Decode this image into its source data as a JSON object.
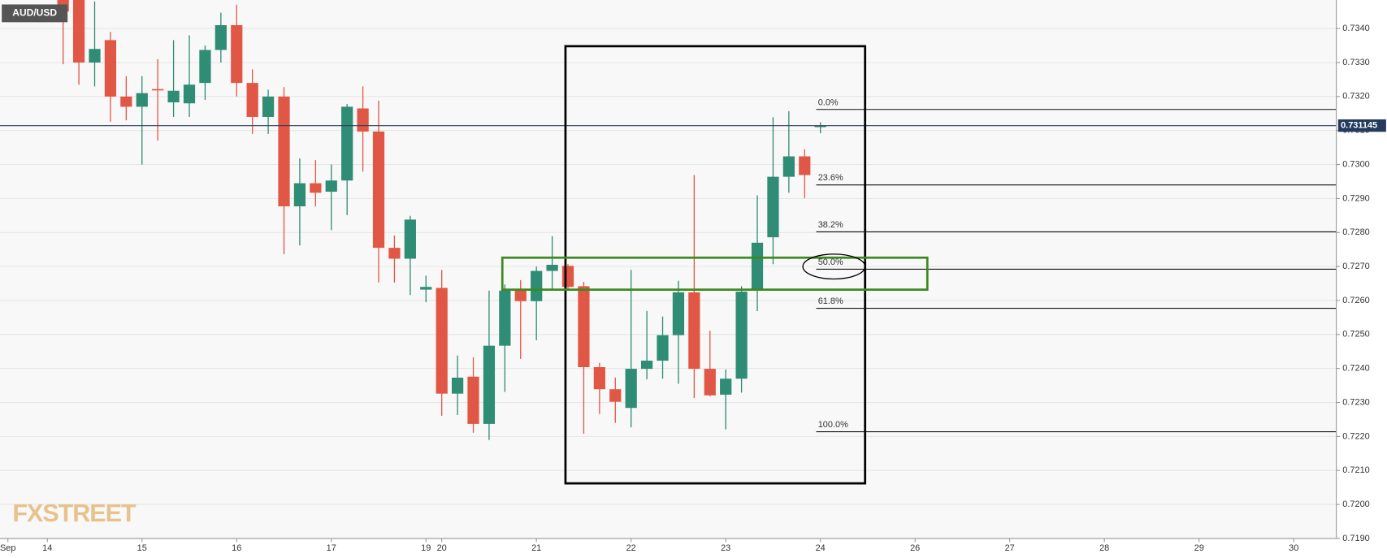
{
  "chart_data": {
    "type": "candlestick",
    "title": "AUD/USD",
    "watermark": "FXSTREET",
    "up_color": "#2f8c75",
    "down_color": "#e15745",
    "grid": true,
    "x": [
      1,
      2,
      3,
      4,
      5,
      6,
      7,
      8,
      9,
      10,
      11,
      12,
      13,
      14,
      15,
      16,
      17,
      18,
      19,
      20,
      21,
      22,
      23,
      24,
      25,
      26,
      27,
      28,
      29,
      30,
      31,
      32,
      33,
      34,
      35,
      36,
      37,
      38,
      39,
      40,
      41,
      42,
      43,
      44,
      45,
      46,
      47,
      48,
      49
    ],
    "open": [
      0.735,
      0.73484,
      0.733,
      0.73366,
      0.732,
      0.7317,
      0.73222,
      0.73183,
      0.7318,
      0.7324,
      0.73337,
      0.7341,
      0.7324,
      0.7314,
      0.732,
      0.72877,
      0.72945,
      0.7292,
      0.72953,
      0.73165,
      0.73097,
      0.72755,
      0.72723,
      0.72632,
      0.72637,
      0.72326,
      0.72376,
      0.72237,
      0.72467,
      0.72629,
      0.72598,
      0.72687,
      0.72702,
      0.72642,
      0.72404,
      0.72339,
      0.72284,
      0.72399,
      0.72423,
      0.72498,
      0.72624,
      0.72399,
      0.72323,
      0.7237,
      0.72632,
      0.72786,
      0.72964,
      0.73024,
      0.7311
    ],
    "high": [
      0.7352,
      0.735,
      0.7348,
      0.7339,
      0.7326,
      0.7326,
      0.7331,
      0.73366,
      0.7338,
      0.7335,
      0.73447,
      0.7347,
      0.7328,
      0.7322,
      0.73228,
      0.73018,
      0.73013,
      0.73,
      0.73178,
      0.7323,
      0.73188,
      0.72791,
      0.72849,
      0.72673,
      0.7269,
      0.72438,
      0.72433,
      0.72629,
      0.72647,
      0.7266,
      0.727,
      0.72789,
      0.72707,
      0.72655,
      0.72417,
      0.72373,
      0.7269,
      0.72569,
      0.72553,
      0.72658,
      0.72969,
      0.72511,
      0.72397,
      0.72642,
      0.72909,
      0.73139,
      0.73157,
      0.73045,
      0.73124
    ],
    "low": [
      0.73295,
      0.73235,
      0.7323,
      0.73126,
      0.7313,
      0.73,
      0.7307,
      0.7314,
      0.7314,
      0.7319,
      0.733,
      0.732,
      0.7309,
      0.7309,
      0.72736,
      0.72762,
      0.72877,
      0.72807,
      0.72851,
      0.72979,
      0.72653,
      0.72653,
      0.72616,
      0.72595,
      0.72261,
      0.72263,
      0.72211,
      0.7219,
      0.72331,
      0.72428,
      0.72483,
      0.72632,
      0.72632,
      0.72208,
      0.72266,
      0.7224,
      0.72227,
      0.72368,
      0.7237,
      0.72355,
      0.72313,
      0.72318,
      0.72221,
      0.72329,
      0.72569,
      0.72707,
      0.72917,
      0.72901,
      0.73092
    ],
    "close": [
      0.7345,
      0.733,
      0.7334,
      0.732,
      0.7317,
      0.7321,
      0.73218,
      0.73217,
      0.73235,
      0.73337,
      0.7341,
      0.7324,
      0.7314,
      0.732,
      0.72877,
      0.72945,
      0.72917,
      0.72953,
      0.7317,
      0.73097,
      0.72755,
      0.72723,
      0.72838,
      0.7264,
      0.72326,
      0.72373,
      0.72237,
      0.72467,
      0.72629,
      0.72598,
      0.72687,
      0.72705,
      0.7264,
      0.72404,
      0.72339,
      0.72302,
      0.72399,
      0.72423,
      0.72498,
      0.72624,
      0.72399,
      0.72321,
      0.7237,
      0.72626,
      0.7277,
      0.72964,
      0.73024,
      0.72969,
      0.73115
    ],
    "xlim": [
      -3,
      81.7
    ],
    "xticks": [
      {
        "value": -2.5,
        "label": "Sep"
      },
      {
        "value": 0,
        "label": "14"
      },
      {
        "value": 6,
        "label": "15"
      },
      {
        "value": 12,
        "label": "16"
      },
      {
        "value": 18,
        "label": "17"
      },
      {
        "value": 24,
        "label": "19"
      },
      {
        "value": 25,
        "label": "20"
      },
      {
        "value": 31,
        "label": "21"
      },
      {
        "value": 37,
        "label": "22"
      },
      {
        "value": 43,
        "label": "23"
      },
      {
        "value": 49,
        "label": "24"
      },
      {
        "value": 55,
        "label": "26"
      },
      {
        "value": 61,
        "label": "27"
      },
      {
        "value": 67,
        "label": "28"
      },
      {
        "value": 73,
        "label": "29"
      },
      {
        "value": 79,
        "label": "30"
      }
    ],
    "ylim": [
      0.719,
      0.73484
    ],
    "yticks": [
      {
        "value": 0.719,
        "label": "0.7190"
      },
      {
        "value": 0.72,
        "label": "0.7200"
      },
      {
        "value": 0.721,
        "label": "0.7210"
      },
      {
        "value": 0.722,
        "label": "0.7220"
      },
      {
        "value": 0.723,
        "label": "0.7230"
      },
      {
        "value": 0.724,
        "label": "0.7240"
      },
      {
        "value": 0.725,
        "label": "0.7250"
      },
      {
        "value": 0.726,
        "label": "0.7260"
      },
      {
        "value": 0.727,
        "label": "0.7270"
      },
      {
        "value": 0.728,
        "label": "0.7280"
      },
      {
        "value": 0.729,
        "label": "0.7290"
      },
      {
        "value": 0.73,
        "label": "0.7300"
      },
      {
        "value": 0.731,
        "label": "0.7310"
      },
      {
        "value": 0.732,
        "label": "0.7320"
      },
      {
        "value": 0.733,
        "label": "0.7330"
      },
      {
        "value": 0.734,
        "label": "0.7340"
      }
    ],
    "last_price": 0.731145,
    "fib_levels": [
      {
        "label": "0.0%",
        "value": 0.73162
      },
      {
        "label": "23.6%",
        "value": 0.7294
      },
      {
        "label": "38.2%",
        "value": 0.72802
      },
      {
        "label": "50.0%",
        "value": 0.72692
      },
      {
        "label": "61.8%",
        "value": 0.72577
      },
      {
        "label": "100.0%",
        "value": 0.72214
      }
    ]
  }
}
